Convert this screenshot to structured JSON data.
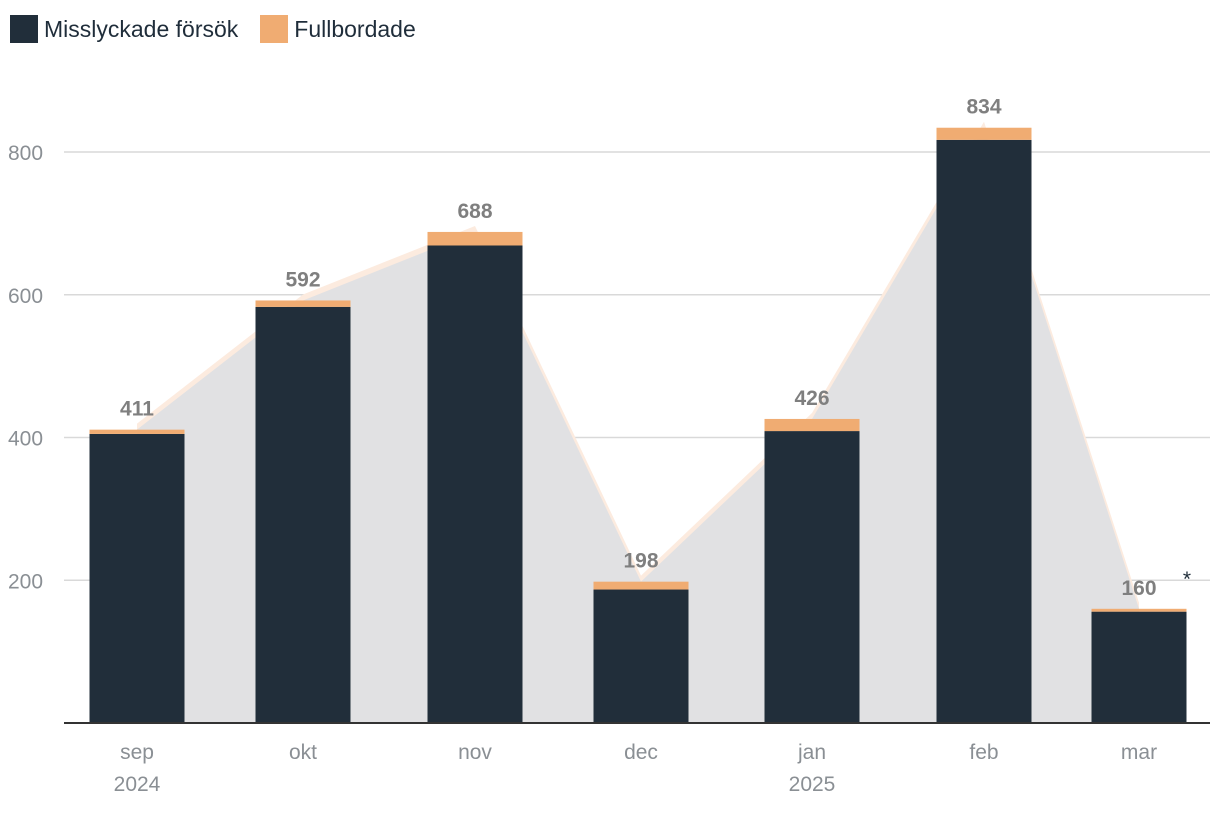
{
  "legend": [
    {
      "label": "Misslyckade försök",
      "color": "#212e3a"
    },
    {
      "label": "Fullbordade",
      "color": "#f0ac72"
    }
  ],
  "colors": {
    "area": "#e1e1e3",
    "area_edge": "#fcebdf",
    "grid": "#d9d9d9",
    "axis": "#333333"
  },
  "chart_data": {
    "type": "bar",
    "stacked": true,
    "categories": [
      "sep",
      "okt",
      "nov",
      "dec",
      "jan",
      "feb",
      "mar"
    ],
    "category_sublabels": [
      "2024",
      "",
      "",
      "",
      "2025",
      "",
      ""
    ],
    "series": [
      {
        "name": "Misslyckade försök",
        "values": [
          405,
          583,
          669,
          187,
          409,
          817,
          156
        ]
      },
      {
        "name": "Fullbordade",
        "values": [
          6,
          9,
          19,
          11,
          17,
          17,
          4
        ]
      }
    ],
    "totals": [
      411,
      592,
      688,
      198,
      426,
      834,
      160
    ],
    "total_labels": [
      "411",
      "592",
      "688",
      "198",
      "426",
      "834",
      "160"
    ],
    "annotations": [
      {
        "category": "mar",
        "text": "*"
      }
    ],
    "yticks": [
      "200",
      "400",
      "600",
      "800"
    ],
    "ylim": [
      0,
      900
    ],
    "grid": true,
    "legend_position": "top-left"
  }
}
